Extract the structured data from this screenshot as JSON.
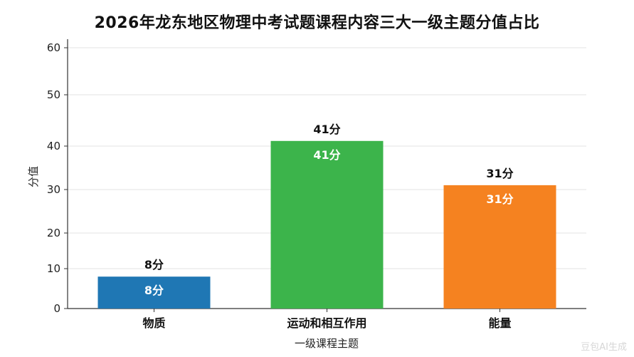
{
  "chart_data": {
    "type": "bar",
    "title": "2026年龙东地区物理中考试题课程内容三大一级主题分值占比",
    "xlabel": "一级课程主题",
    "ylabel": "分值",
    "categories": [
      "物质",
      "运动和相互作用",
      "能量"
    ],
    "values": [
      8,
      41,
      31
    ],
    "value_labels": [
      "8分",
      "41分",
      "31分"
    ],
    "colors": [
      "#1f77b4",
      "#3cb44b",
      "#f58220"
    ],
    "y_ticks": [
      0,
      10,
      20,
      30,
      40,
      50,
      60
    ],
    "ylim": [
      0,
      60
    ],
    "grid": true
  },
  "watermark": "豆包AI生成"
}
